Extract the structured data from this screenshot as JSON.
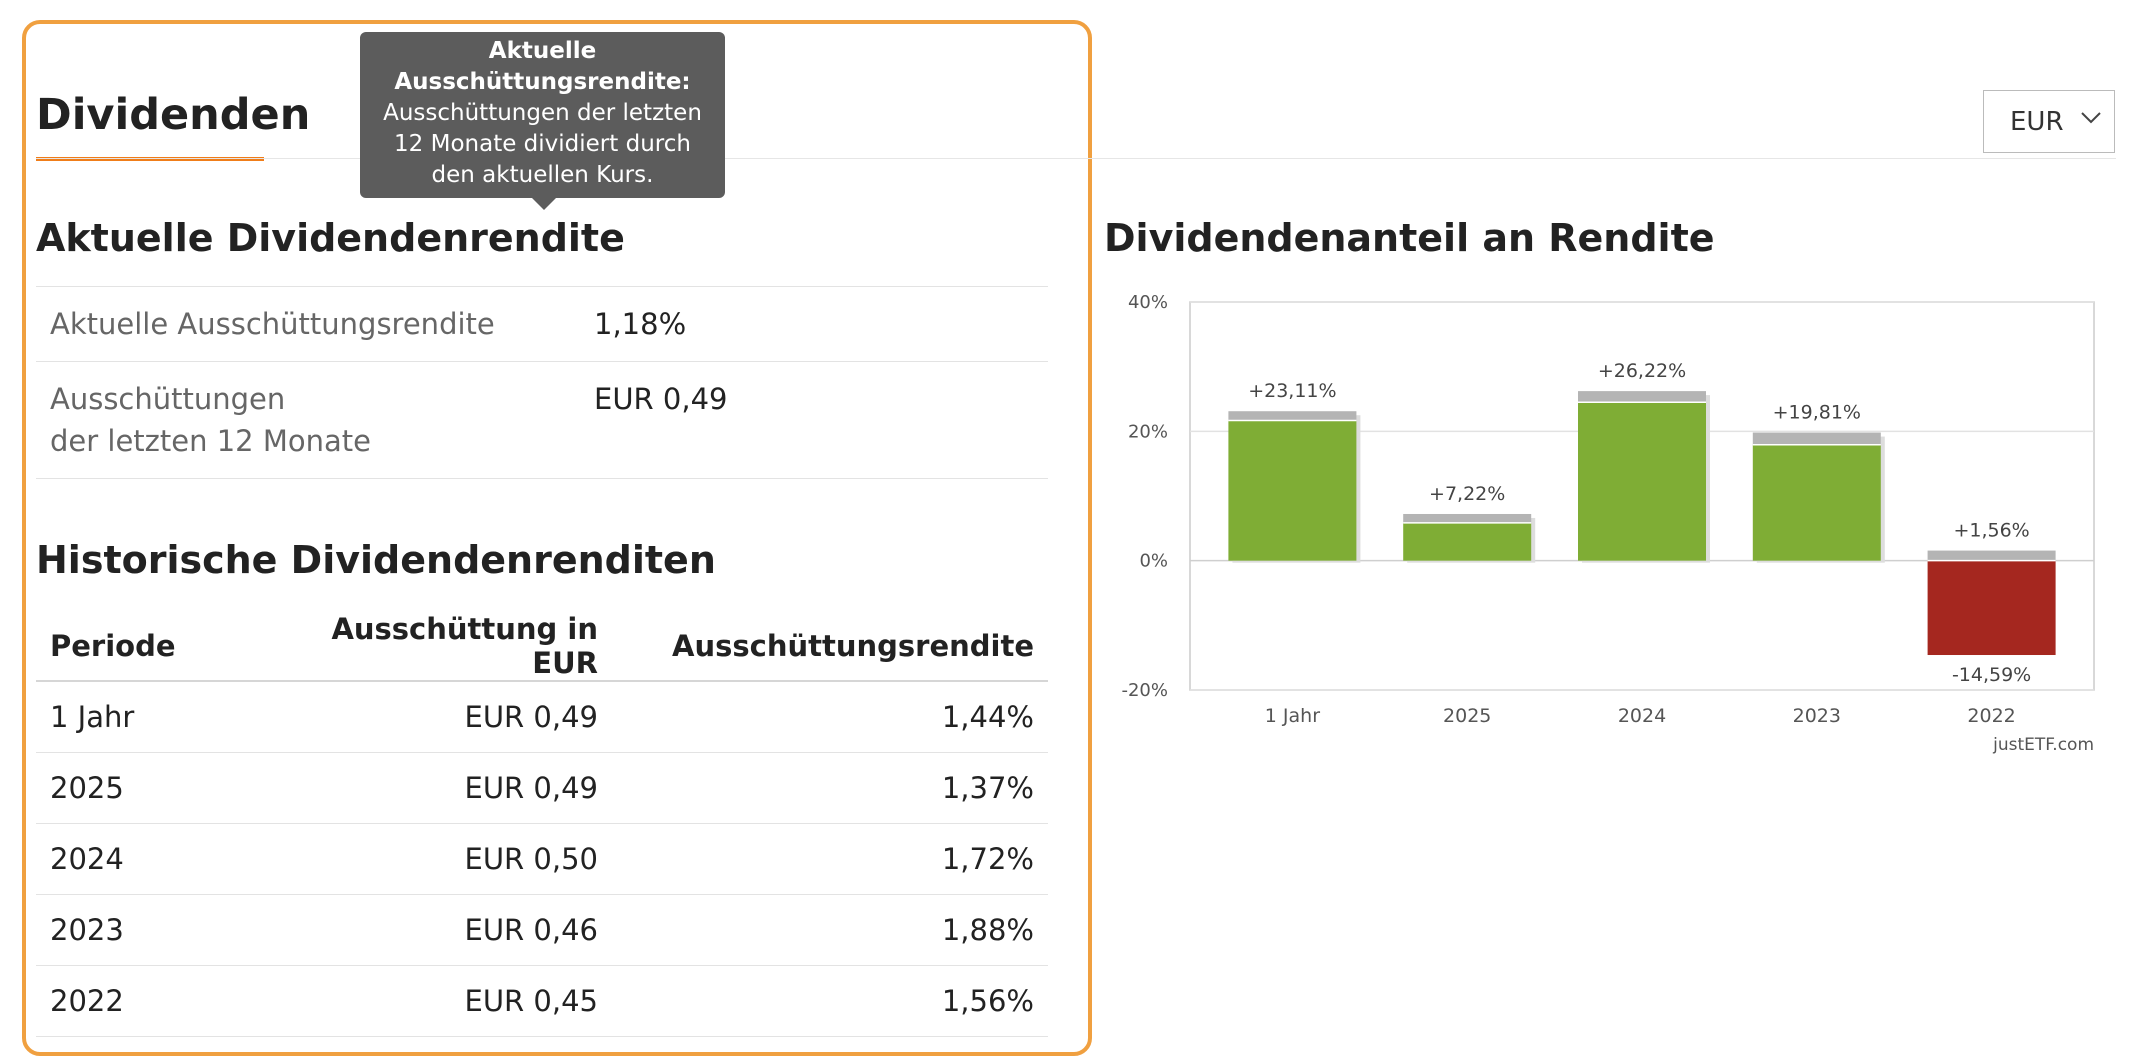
{
  "header": {
    "title": "Dividenden",
    "currency": "EUR",
    "currency_icon": "chevron-down-icon"
  },
  "tooltip": {
    "title": "Aktuelle Ausschüttungsrendite:",
    "body": "Ausschüttungen der letzten 12 Monate dividiert durch den aktuellen Kurs."
  },
  "current": {
    "title": "Aktuelle Dividendenrendite",
    "rows": [
      {
        "label": "Aktuelle Ausschüttungsrendite",
        "value": "1,18%"
      },
      {
        "label_line1": "Ausschüttungen",
        "label_line2": "der letzten 12 Monate",
        "value": "EUR 0,49"
      }
    ]
  },
  "historical": {
    "title": "Historische Dividendenrenditen",
    "columns": [
      "Periode",
      "Ausschüttung in EUR",
      "Ausschüttungsrendite"
    ],
    "rows": [
      {
        "period": "1 Jahr",
        "payout": "EUR 0,49",
        "yield": "1,44%"
      },
      {
        "period": "2025",
        "payout": "EUR 0,49",
        "yield": "1,37%"
      },
      {
        "period": "2024",
        "payout": "EUR 0,50",
        "yield": "1,72%"
      },
      {
        "period": "2023",
        "payout": "EUR 0,46",
        "yield": "1,88%"
      },
      {
        "period": "2022",
        "payout": "EUR 0,45",
        "yield": "1,56%"
      }
    ]
  },
  "chart_section": {
    "title": "Dividendenanteil an Rendite",
    "credit": "justETF.com"
  },
  "chart_data": {
    "type": "bar",
    "categories": [
      "1 Jahr",
      "2025",
      "2024",
      "2023",
      "2022"
    ],
    "total_labels": [
      "+23,11%",
      "+7,22%",
      "+26,22%",
      "+19,81%",
      "+1,56%"
    ],
    "negative_labels": [
      "",
      "",
      "",
      "",
      "-14,59%"
    ],
    "series": [
      {
        "values": [
          21.67,
          5.85,
          24.5,
          17.93,
          -14.59
        ]
      },
      {
        "values": [
          1.44,
          1.37,
          1.72,
          1.88,
          1.56
        ]
      }
    ],
    "ylim": [
      -20,
      40
    ],
    "yticks": [
      -20,
      0,
      20,
      40
    ],
    "ytick_labels": [
      "-20%",
      "0%",
      "20%",
      "40%"
    ],
    "grid": true,
    "colors": {
      "positive": "#7fad35",
      "negative": "#a5271f",
      "dividend": "#b4b4b4",
      "accent": "#f07d19"
    }
  }
}
